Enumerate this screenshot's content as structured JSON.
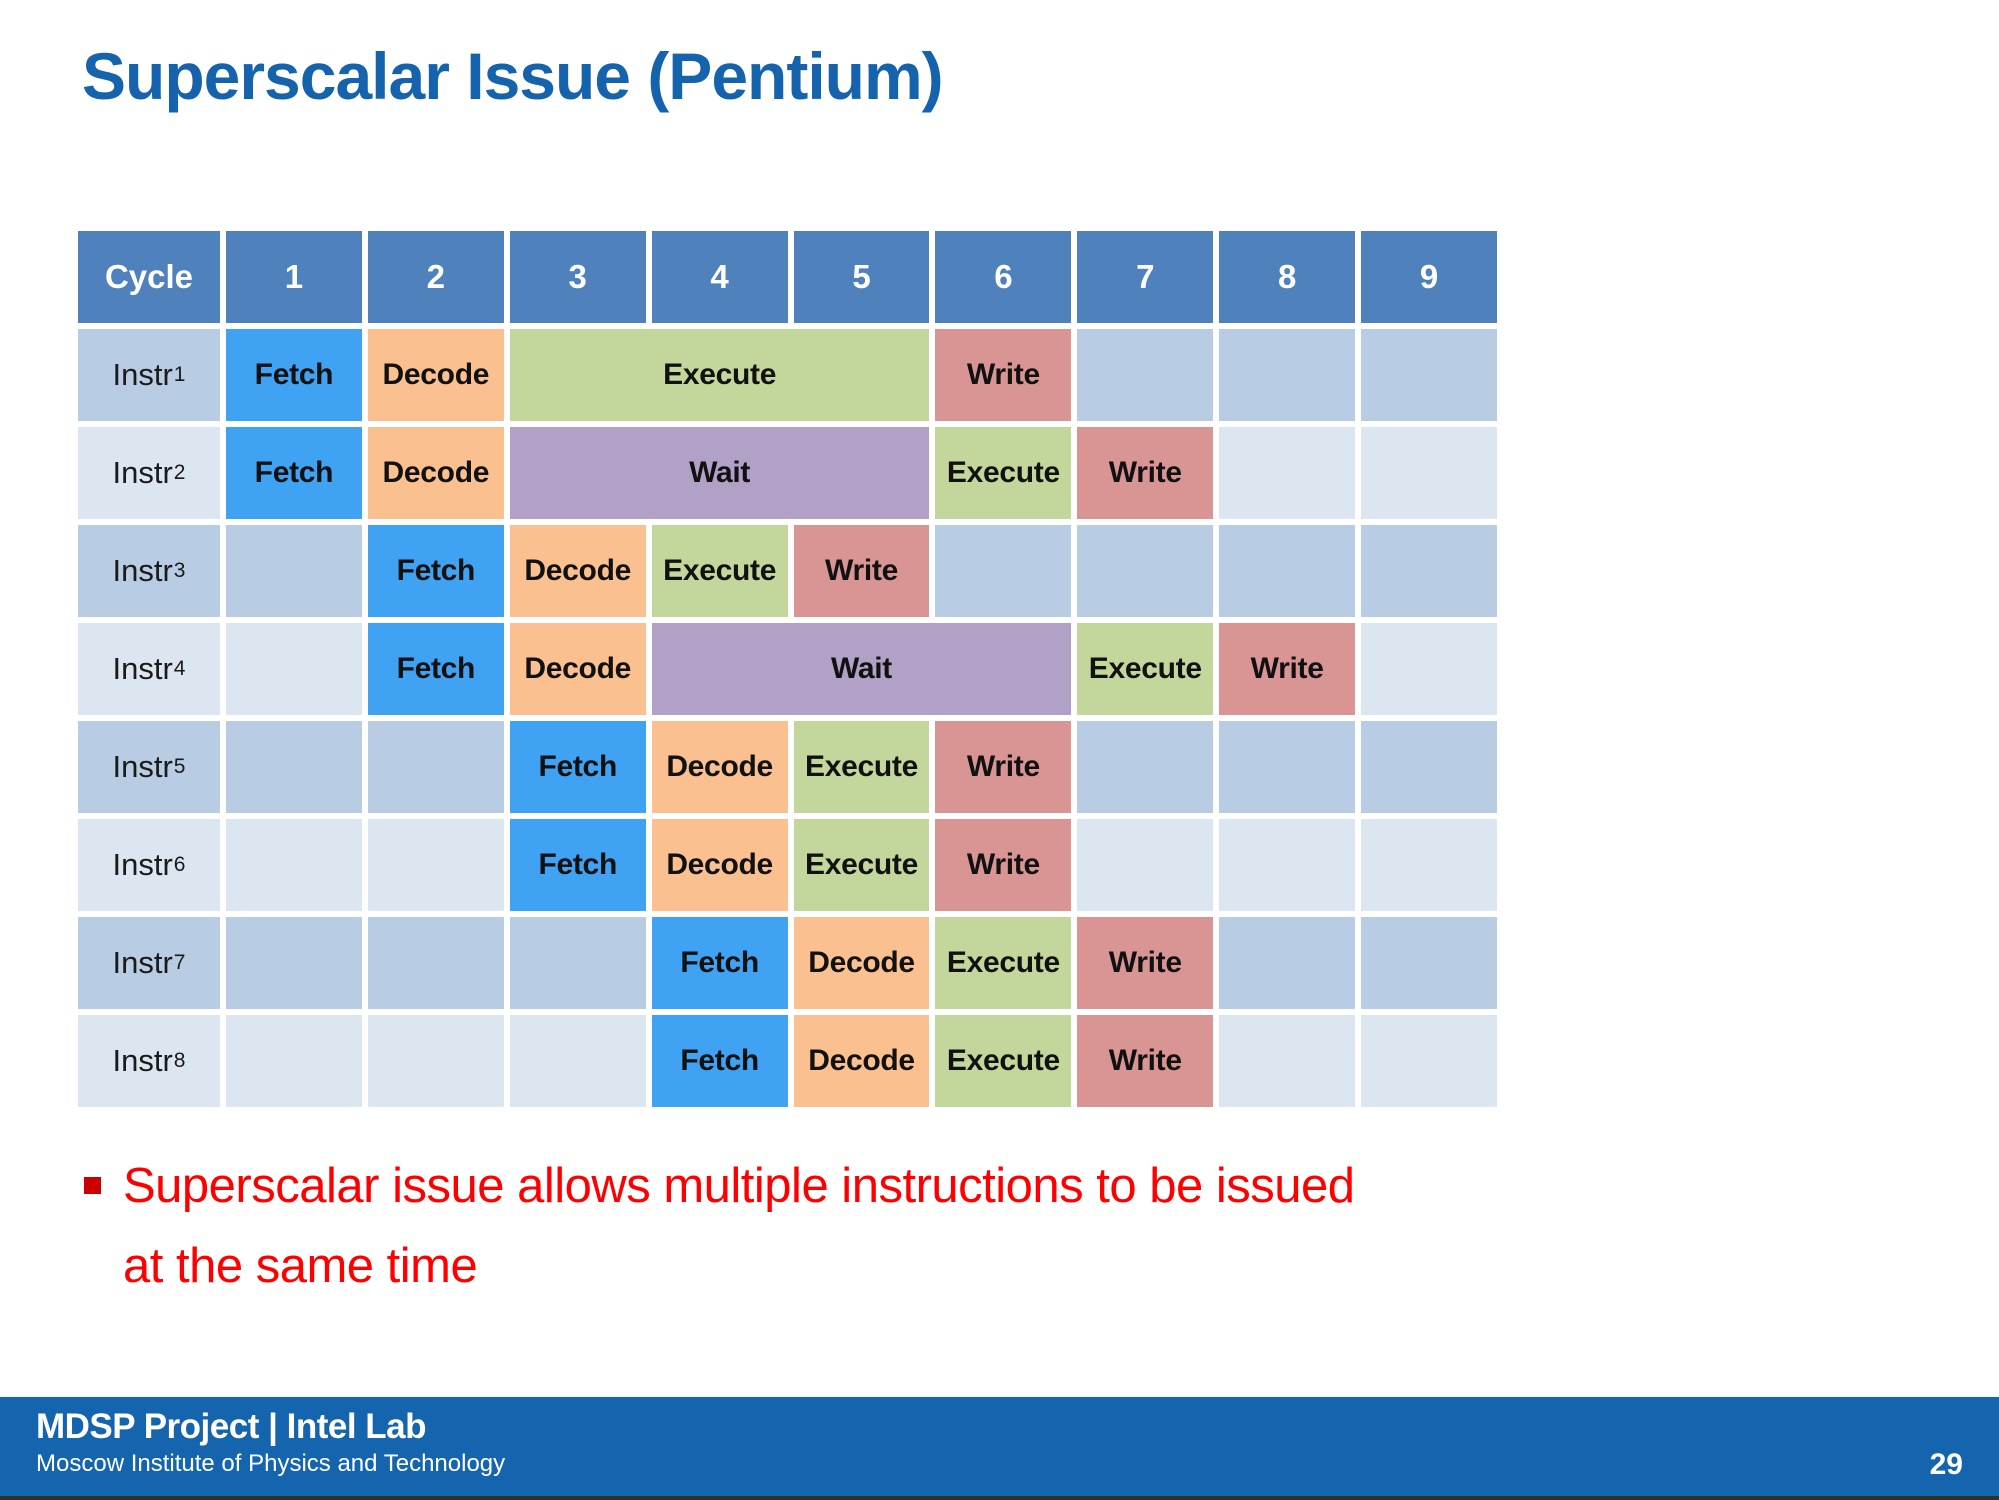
{
  "slide": {
    "title": "Superscalar Issue (Pentium)"
  },
  "table": {
    "header": [
      "Cycle",
      "1",
      "2",
      "3",
      "4",
      "5",
      "6",
      "7",
      "8",
      "9"
    ],
    "rows": [
      {
        "label": "Instr",
        "sub": "1",
        "segments": [
          {
            "start": 1,
            "stage": "Fetch"
          },
          {
            "start": 2,
            "stage": "Decode"
          },
          {
            "start": 3,
            "span": 3,
            "stage": "Execute"
          },
          {
            "start": 6,
            "stage": "Write"
          }
        ]
      },
      {
        "label": "Instr",
        "sub": "2",
        "segments": [
          {
            "start": 1,
            "stage": "Fetch"
          },
          {
            "start": 2,
            "stage": "Decode"
          },
          {
            "start": 3,
            "span": 3,
            "stage": "Wait"
          },
          {
            "start": 6,
            "stage": "Execute"
          },
          {
            "start": 7,
            "stage": "Write"
          }
        ]
      },
      {
        "label": "Instr",
        "sub": "3",
        "segments": [
          {
            "start": 2,
            "stage": "Fetch"
          },
          {
            "start": 3,
            "stage": "Decode"
          },
          {
            "start": 4,
            "stage": "Execute"
          },
          {
            "start": 5,
            "stage": "Write"
          }
        ]
      },
      {
        "label": "Instr",
        "sub": "4",
        "segments": [
          {
            "start": 2,
            "stage": "Fetch"
          },
          {
            "start": 3,
            "stage": "Decode"
          },
          {
            "start": 4,
            "span": 3,
            "stage": "Wait"
          },
          {
            "start": 7,
            "stage": "Execute"
          },
          {
            "start": 8,
            "stage": "Write"
          }
        ]
      },
      {
        "label": "Instr",
        "sub": "5",
        "segments": [
          {
            "start": 3,
            "stage": "Fetch"
          },
          {
            "start": 4,
            "stage": "Decode"
          },
          {
            "start": 5,
            "stage": "Execute"
          },
          {
            "start": 6,
            "stage": "Write"
          }
        ]
      },
      {
        "label": "Instr",
        "sub": "6",
        "segments": [
          {
            "start": 3,
            "stage": "Fetch"
          },
          {
            "start": 4,
            "stage": "Decode"
          },
          {
            "start": 5,
            "stage": "Execute"
          },
          {
            "start": 6,
            "stage": "Write"
          }
        ]
      },
      {
        "label": "Instr",
        "sub": "7",
        "segments": [
          {
            "start": 4,
            "stage": "Fetch"
          },
          {
            "start": 5,
            "stage": "Decode"
          },
          {
            "start": 6,
            "stage": "Execute"
          },
          {
            "start": 7,
            "stage": "Write"
          }
        ]
      },
      {
        "label": "Instr",
        "sub": "8",
        "segments": [
          {
            "start": 4,
            "stage": "Fetch"
          },
          {
            "start": 5,
            "stage": "Decode"
          },
          {
            "start": 6,
            "stage": "Execute"
          },
          {
            "start": 7,
            "stage": "Write"
          }
        ]
      }
    ]
  },
  "bullet": {
    "lines": [
      "Superscalar issue allows multiple instructions to be issued",
      "at the same time"
    ]
  },
  "footer": {
    "project": "MDSP Project | Intel Lab",
    "institute": "Moscow Institute of Physics and Technology",
    "page_number": "29"
  },
  "colors": {
    "titleBlue": "#1463AC",
    "headerBlue": "#4F81BD",
    "rowDark": "#B8CCE4",
    "rowLight": "#DCE6F1",
    "fetch": "#3FA2F2",
    "decode": "#FAC08F",
    "execute": "#C3D69B",
    "write": "#D99594",
    "wait": "#B2A1C7",
    "bulletRed": "#FF0000",
    "bulletMarker": "#CC0000",
    "footerBlue": "#1565AE"
  }
}
